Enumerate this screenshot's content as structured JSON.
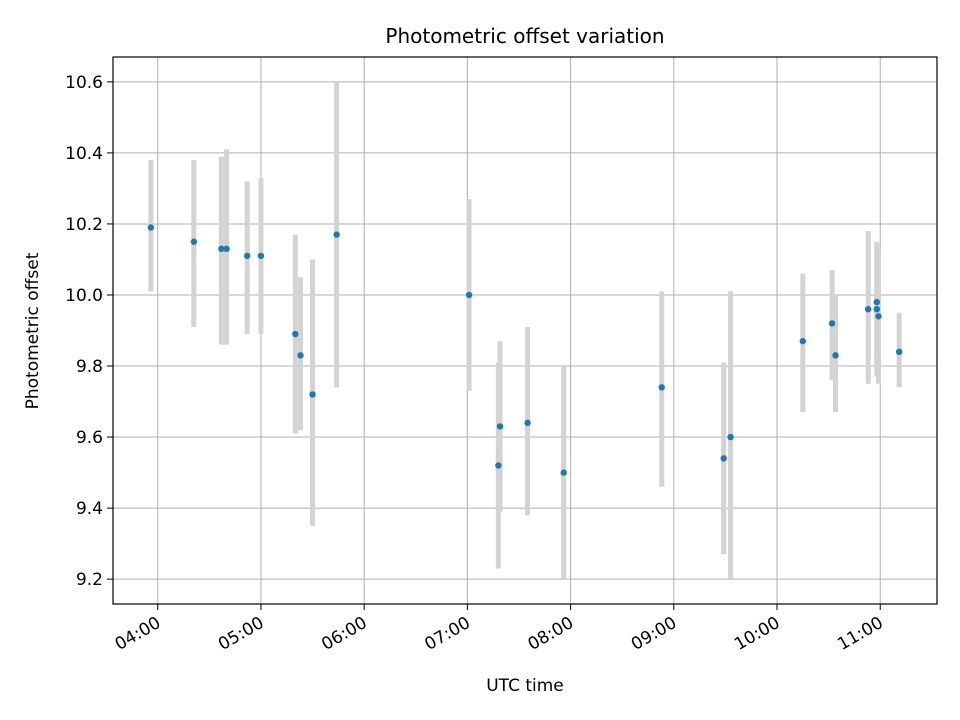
{
  "chart_data": {
    "type": "scatter",
    "title": "Photometric offset variation",
    "xlabel": "UTC time",
    "ylabel": "Photometric offset",
    "x_unit": "UTC time (HH:MM)",
    "x_ticks": [
      "04:00",
      "05:00",
      "06:00",
      "07:00",
      "08:00",
      "09:00",
      "10:00",
      "11:00"
    ],
    "y_ticks": [
      9.2,
      9.4,
      9.6,
      9.8,
      10.0,
      10.2,
      10.4,
      10.6
    ],
    "xlim": [
      "03:34",
      "11:33"
    ],
    "ylim": [
      9.13,
      10.67
    ],
    "grid": true,
    "legend": "none",
    "marker_color": "#1f77b4",
    "errorbar_color": "#d3d3d3",
    "series": [
      {
        "points": [
          {
            "x": "03:56",
            "y": 10.19,
            "ymin": 10.01,
            "ymax": 10.38
          },
          {
            "x": "04:21",
            "y": 10.15,
            "ymin": 9.91,
            "ymax": 10.38
          },
          {
            "x": "04:37",
            "y": 10.13,
            "ymin": 9.86,
            "ymax": 10.39
          },
          {
            "x": "04:40",
            "y": 10.13,
            "ymin": 9.86,
            "ymax": 10.41
          },
          {
            "x": "04:52",
            "y": 10.11,
            "ymin": 9.89,
            "ymax": 10.32
          },
          {
            "x": "05:00",
            "y": 10.11,
            "ymin": 9.89,
            "ymax": 10.33
          },
          {
            "x": "05:20",
            "y": 9.89,
            "ymin": 9.61,
            "ymax": 10.17
          },
          {
            "x": "05:23",
            "y": 9.83,
            "ymin": 9.62,
            "ymax": 10.05
          },
          {
            "x": "05:30",
            "y": 9.72,
            "ymin": 9.35,
            "ymax": 10.1
          },
          {
            "x": "05:44",
            "y": 10.17,
            "ymin": 9.74,
            "ymax": 10.6
          },
          {
            "x": "07:01",
            "y": 10.0,
            "ymin": 9.73,
            "ymax": 10.27
          },
          {
            "x": "07:18",
            "y": 9.52,
            "ymin": 9.23,
            "ymax": 9.81
          },
          {
            "x": "07:19",
            "y": 9.63,
            "ymin": 9.39,
            "ymax": 9.87
          },
          {
            "x": "07:35",
            "y": 9.64,
            "ymin": 9.38,
            "ymax": 9.91
          },
          {
            "x": "07:56",
            "y": 9.5,
            "ymin": 9.2,
            "ymax": 9.8
          },
          {
            "x": "08:53",
            "y": 9.74,
            "ymin": 9.46,
            "ymax": 10.01
          },
          {
            "x": "09:29",
            "y": 9.54,
            "ymin": 9.27,
            "ymax": 9.81
          },
          {
            "x": "09:33",
            "y": 9.6,
            "ymin": 9.2,
            "ymax": 10.01
          },
          {
            "x": "10:15",
            "y": 9.87,
            "ymin": 9.67,
            "ymax": 10.06
          },
          {
            "x": "10:32",
            "y": 9.92,
            "ymin": 9.76,
            "ymax": 10.07
          },
          {
            "x": "10:34",
            "y": 9.83,
            "ymin": 9.67,
            "ymax": 10.0
          },
          {
            "x": "10:53",
            "y": 9.96,
            "ymin": 9.75,
            "ymax": 10.18
          },
          {
            "x": "10:58",
            "y": 9.98,
            "ymin": 9.82,
            "ymax": 10.15
          },
          {
            "x": "10:58",
            "y": 9.96,
            "ymin": 9.77,
            "ymax": 10.14
          },
          {
            "x": "10:59",
            "y": 9.94,
            "ymin": 9.75,
            "ymax": 10.13
          },
          {
            "x": "11:11",
            "y": 9.84,
            "ymin": 9.74,
            "ymax": 9.95
          }
        ]
      }
    ]
  }
}
